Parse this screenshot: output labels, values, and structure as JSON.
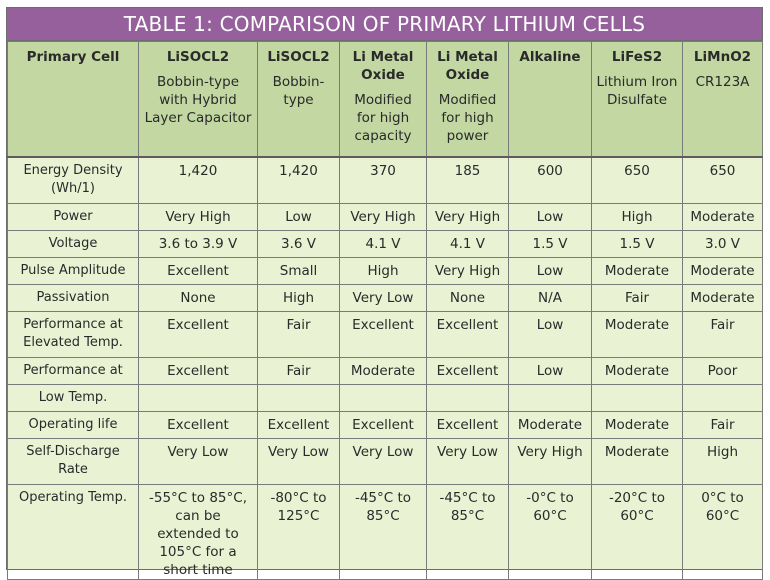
{
  "title": "TABLE 1: COMPARISON OF PRIMARY LITHIUM CELLS",
  "headers": [
    {
      "name": "Primary Cell",
      "sub": ""
    },
    {
      "name": "LiSOCL2",
      "sub": "Bobbin-type with Hybrid Layer Capacitor"
    },
    {
      "name": "LiSOCL2",
      "sub": "Bobbin-type"
    },
    {
      "name": "Li Metal Oxide",
      "sub": "Modified for high capacity"
    },
    {
      "name": "Li Metal Oxide",
      "sub": "Modified for high power"
    },
    {
      "name": "Alkaline",
      "sub": ""
    },
    {
      "name": "LiFeS2",
      "sub": "Lithium Iron Disulfate"
    },
    {
      "name": "LiMnO2",
      "sub": "CR123A"
    }
  ],
  "rows": [
    {
      "label": "Energy Density (Wh/1)",
      "cells": [
        "1,420",
        "1,420",
        "370",
        "185",
        "600",
        "650",
        "650"
      ]
    },
    {
      "label": "Power",
      "cells": [
        "Very High",
        "Low",
        "Very High",
        "Very High",
        "Low",
        "High",
        "Moderate"
      ]
    },
    {
      "label": "Voltage",
      "cells": [
        "3.6 to 3.9 V",
        "3.6 V",
        "4.1 V",
        "4.1 V",
        "1.5 V",
        "1.5 V",
        "3.0 V"
      ]
    },
    {
      "label": "Pulse Amplitude",
      "cells": [
        "Excellent",
        "Small",
        "High",
        "Very High",
        "Low",
        "Moderate",
        "Moderate"
      ]
    },
    {
      "label": "Passivation",
      "cells": [
        "None",
        "High",
        "Very Low",
        "None",
        "N/A",
        "Fair",
        "Moderate"
      ]
    },
    {
      "label": "Performance at Elevated Temp.",
      "cells": [
        "Excellent",
        "Fair",
        "Excellent",
        "Excellent",
        "Low",
        "Moderate",
        "Fair"
      ]
    },
    {
      "label": "Performance at",
      "cells": [
        "Excellent",
        "Fair",
        "Moderate",
        "Excellent",
        "Low",
        "Moderate",
        "Poor"
      ]
    },
    {
      "label": "Low Temp.",
      "cells": [
        "",
        "",
        "",
        "",
        "",
        "",
        ""
      ]
    },
    {
      "label": "Operating life",
      "cells": [
        "Excellent",
        "Excellent",
        "Excellent",
        "Excellent",
        "Moderate",
        "Moderate",
        "Fair"
      ]
    },
    {
      "label": "Self-Discharge Rate",
      "cells": [
        "Very Low",
        "Very Low",
        "Very Low",
        "Very Low",
        "Very High",
        "Moderate",
        "High"
      ]
    },
    {
      "label": "Operating Temp.",
      "cells": [
        "-55°C to 85°C, can be extended to 105°C for a short time",
        "-80°C to 125°C",
        "-45°C to 85°C",
        "-45°C to 85°C",
        "-0°C to 60°C",
        "-20°C to 60°C",
        "0°C to 60°C"
      ]
    }
  ],
  "colors": {
    "title_bg": "#96609d",
    "header_bg": "#c2d7a2",
    "body_bg": "#e9f3d4"
  }
}
